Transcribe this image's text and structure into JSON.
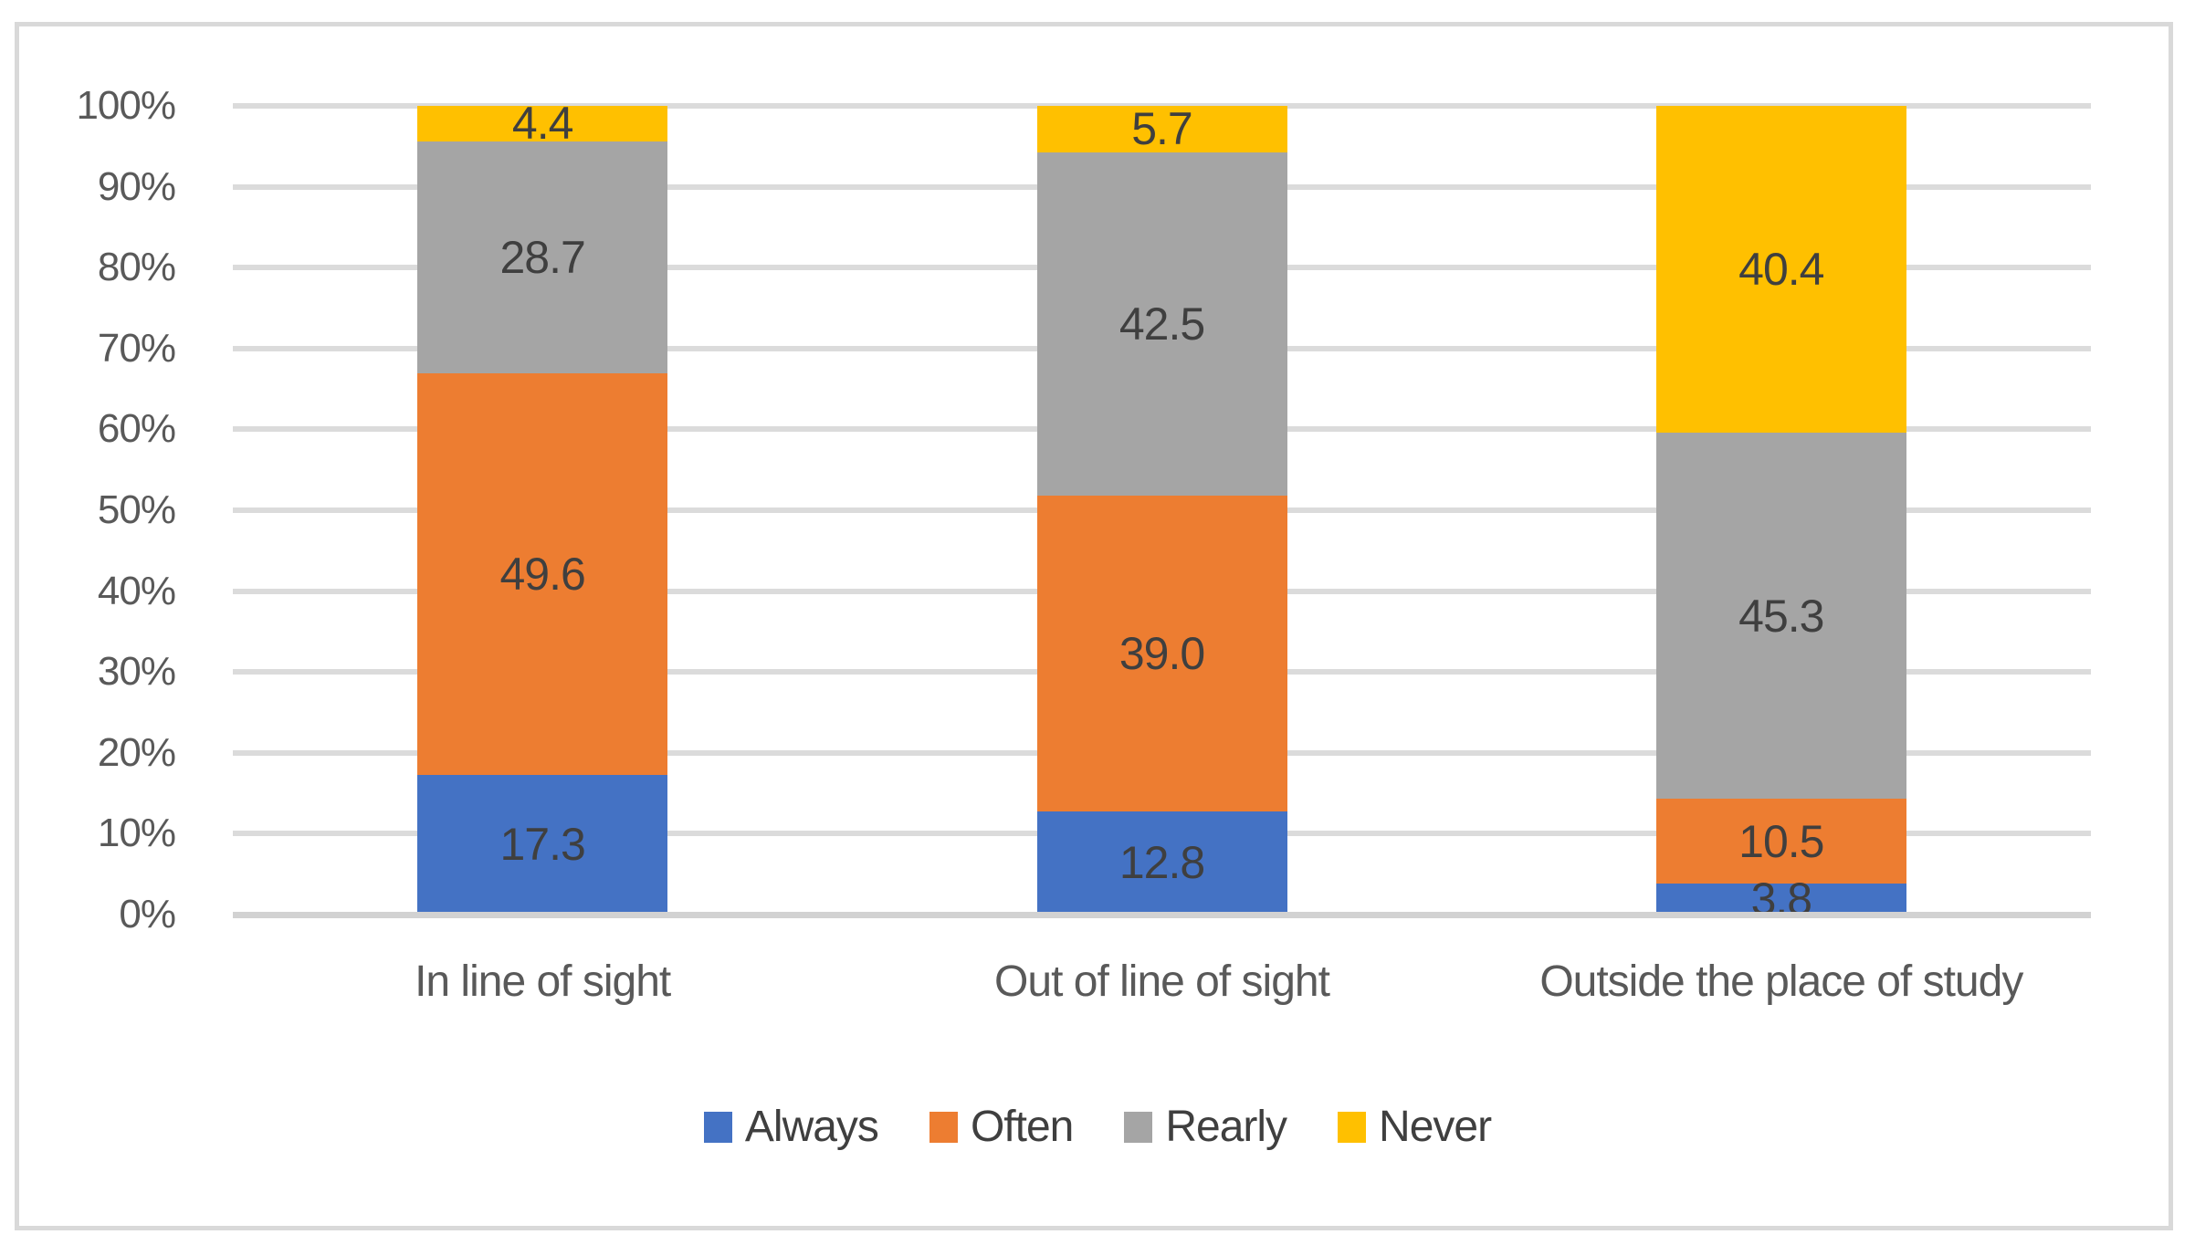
{
  "chart_data": {
    "type": "bar",
    "variant": "stacked-100-percent",
    "title": "",
    "categories": [
      "In line of sight",
      "Out of line of sight",
      "Outside the place of study"
    ],
    "series": [
      {
        "name": "Always",
        "color": "#4472C4",
        "values": [
          17.3,
          12.8,
          3.8
        ],
        "labels": [
          "17.3",
          "12.8",
          "3.8"
        ]
      },
      {
        "name": "Often",
        "color": "#ED7D31",
        "values": [
          49.6,
          39.0,
          10.5
        ],
        "labels": [
          "49.6",
          "39.0",
          "10.5"
        ]
      },
      {
        "name": "Rearly",
        "color": "#A5A5A5",
        "values": [
          28.7,
          42.5,
          45.3
        ],
        "labels": [
          "28.7",
          "42.5",
          "45.3"
        ]
      },
      {
        "name": "Never",
        "color": "#FFC000",
        "values": [
          4.4,
          5.7,
          40.4
        ],
        "labels": [
          "4.4",
          "5.7",
          "40.4"
        ]
      }
    ],
    "y_axis": {
      "min": 0,
      "max": 100,
      "step": 10,
      "tick_labels": [
        "0%",
        "10%",
        "20%",
        "30%",
        "40%",
        "50%",
        "60%",
        "70%",
        "80%",
        "90%",
        "100%"
      ]
    },
    "x_axis": {
      "label": ""
    },
    "legend": {
      "position": "bottom",
      "entries": [
        "Always",
        "Often",
        "Rearly",
        "Never"
      ]
    },
    "grid": "on",
    "colors": {
      "background": "#FFFFFF",
      "figure_border": "#D9D9D9",
      "gridline": "#DBDBDB",
      "axis_text": "#595959",
      "data_label_text": "#3F3F3F",
      "legend_text": "#3F3F3F"
    }
  }
}
